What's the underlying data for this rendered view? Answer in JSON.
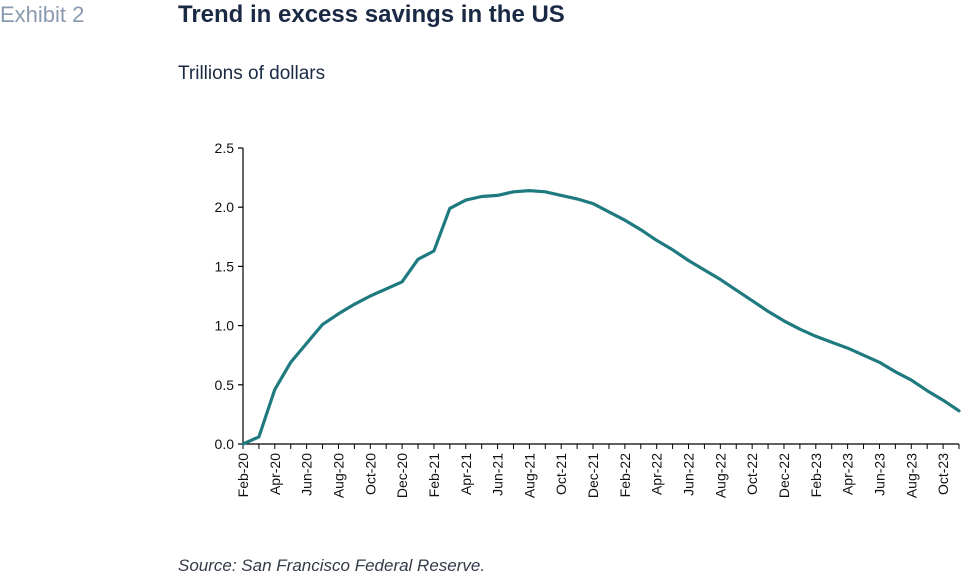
{
  "header": {
    "exhibit_label": "Exhibit 2",
    "title": "Trend in excess savings in the US",
    "subtitle": "Trillions of dollars"
  },
  "footer": {
    "source": "Source: San Francisco Federal Reserve."
  },
  "chart_data": {
    "type": "line",
    "title": "Trend in excess savings in the US",
    "ylabel": "Trillions of dollars",
    "xlabel": "",
    "ylim": [
      0,
      2.5
    ],
    "y_ticks": [
      "0.0",
      "0.5",
      "1.0",
      "1.5",
      "2.0",
      "2.5"
    ],
    "x_tick_labels": [
      "Feb-20",
      "Apr-20",
      "Jun-20",
      "Aug-20",
      "Oct-20",
      "Dec-20",
      "Feb-21",
      "Apr-21",
      "Jun-21",
      "Aug-21",
      "Oct-21",
      "Dec-21",
      "Feb-22",
      "Apr-22",
      "Jun-22",
      "Aug-22",
      "Oct-22",
      "Dec-22",
      "Feb-23",
      "Apr-23",
      "Jun-23",
      "Aug-23",
      "Oct-23"
    ],
    "grid": false,
    "line_color": "#1f7a80",
    "series": [
      {
        "x": [
          "Feb-20",
          "Mar-20",
          "Apr-20",
          "May-20",
          "Jun-20",
          "Jul-20",
          "Aug-20",
          "Sep-20",
          "Oct-20",
          "Nov-20",
          "Dec-20",
          "Jan-21",
          "Feb-21",
          "Mar-21",
          "Apr-21",
          "May-21",
          "Jun-21",
          "Jul-21",
          "Aug-21",
          "Sep-21",
          "Oct-21",
          "Nov-21",
          "Dec-21",
          "Jan-22",
          "Feb-22",
          "Mar-22",
          "Apr-22",
          "May-22",
          "Jun-22",
          "Jul-22",
          "Aug-22",
          "Sep-22",
          "Oct-22",
          "Nov-22",
          "Dec-22",
          "Jan-23",
          "Feb-23",
          "Mar-23",
          "Apr-23",
          "May-23",
          "Jun-23",
          "Jul-23",
          "Aug-23",
          "Sep-23",
          "Oct-23",
          "Nov-23"
        ],
        "values": [
          0.0,
          0.06,
          0.46,
          0.69,
          0.85,
          1.01,
          1.1,
          1.18,
          1.25,
          1.31,
          1.37,
          1.56,
          1.63,
          1.99,
          2.06,
          2.09,
          2.1,
          2.13,
          2.14,
          2.13,
          2.1,
          2.07,
          2.03,
          1.96,
          1.89,
          1.81,
          1.72,
          1.64,
          1.55,
          1.47,
          1.39,
          1.3,
          1.21,
          1.12,
          1.04,
          0.97,
          0.91,
          0.86,
          0.81,
          0.75,
          0.69,
          0.61,
          0.54,
          0.45,
          0.37,
          0.28
        ]
      }
    ]
  }
}
